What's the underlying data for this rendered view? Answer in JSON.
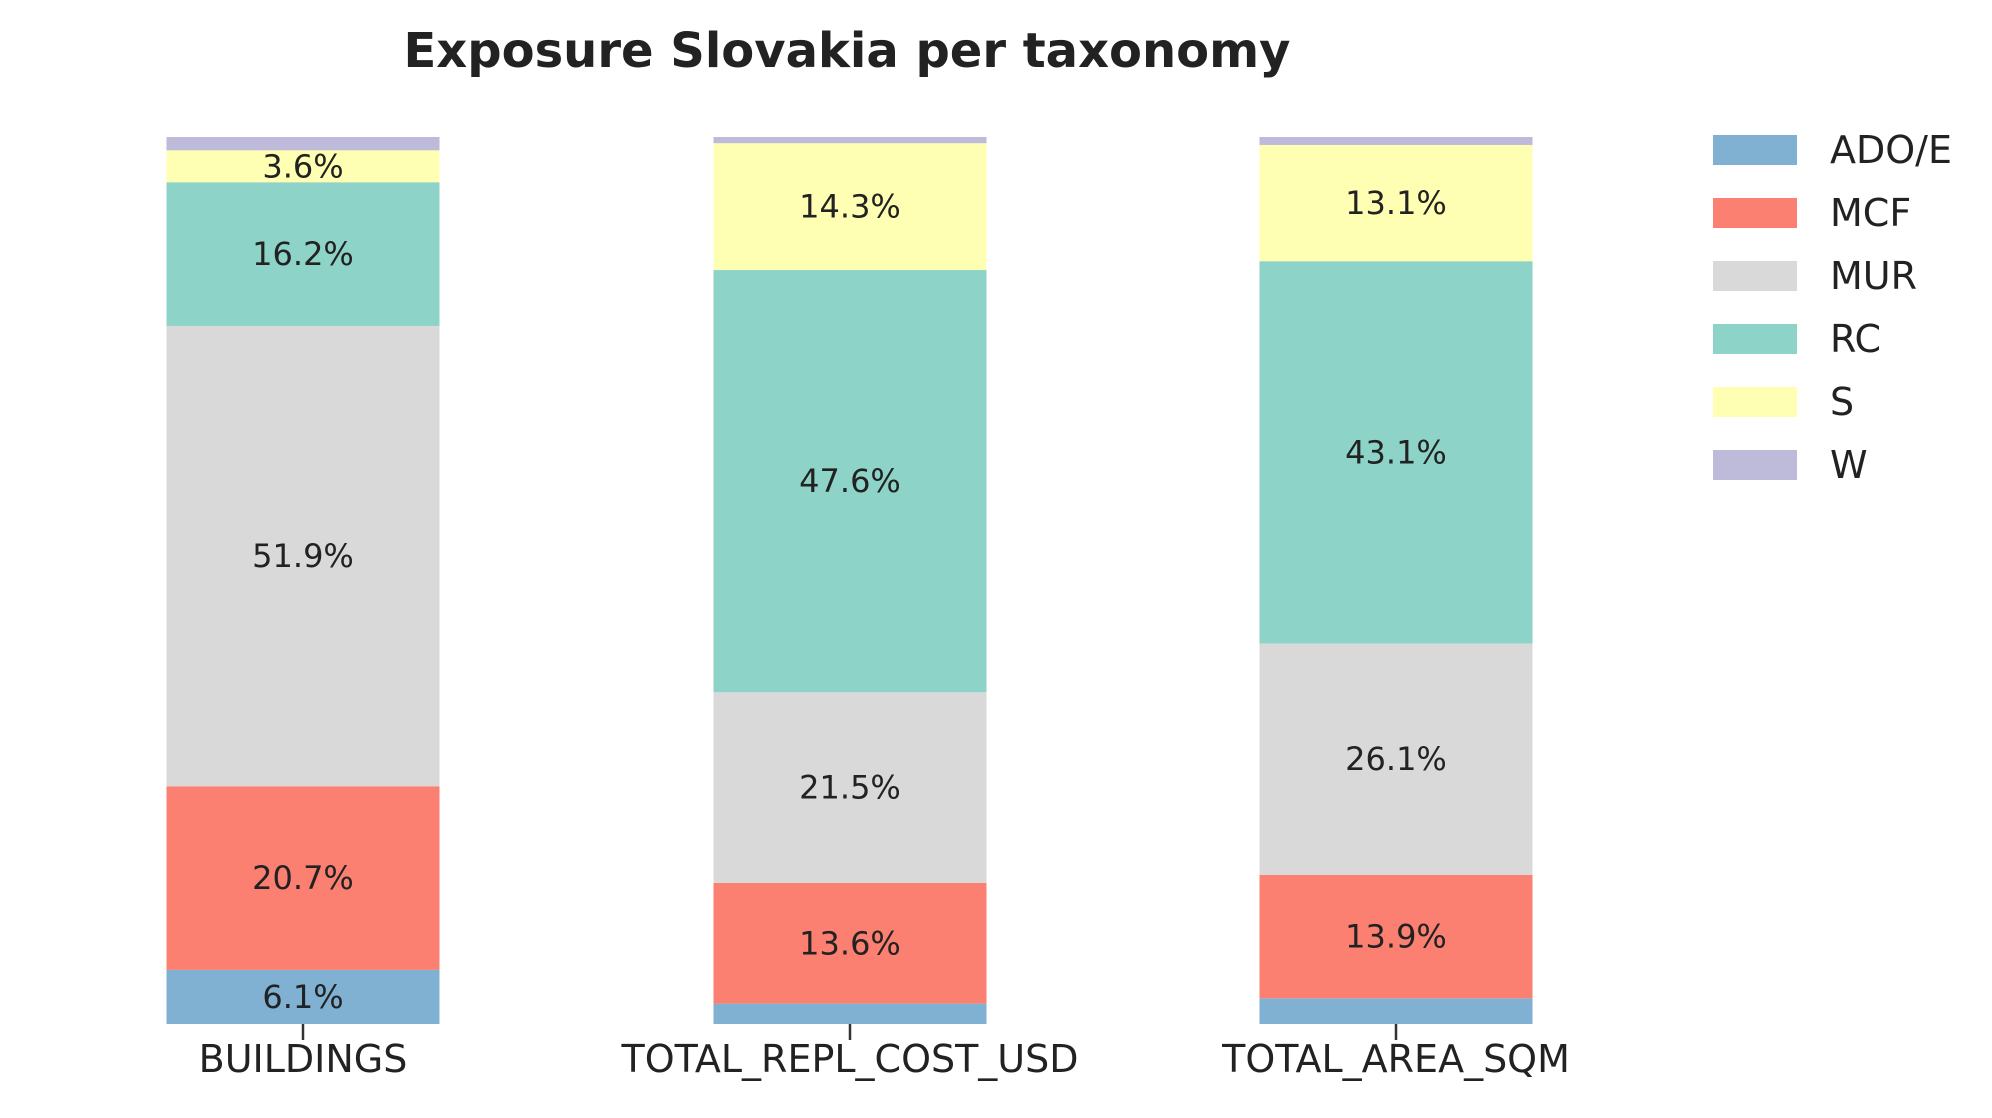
{
  "chart_data": {
    "type": "bar",
    "stacked": true,
    "title": "Exposure Slovakia per taxonomy",
    "xlabel": "",
    "ylabel": "",
    "ylim": [
      0,
      100
    ],
    "grid": false,
    "legend_position": "right",
    "categories": [
      "BUILDINGS",
      "TOTAL_REPL_COST_USD",
      "TOTAL_AREA_SQM"
    ],
    "series": [
      {
        "name": "ADO/E",
        "color": "#80b1d3",
        "values": [
          6.1,
          2.3,
          2.9
        ],
        "labels": [
          "6.1%",
          "",
          ""
        ]
      },
      {
        "name": "MCF",
        "color": "#fb8072",
        "values": [
          20.7,
          13.6,
          13.9
        ],
        "labels": [
          "20.7%",
          "13.6%",
          "13.9%"
        ]
      },
      {
        "name": "MUR",
        "color": "#d9d9d9",
        "values": [
          51.9,
          21.5,
          26.1
        ],
        "labels": [
          "51.9%",
          "21.5%",
          "26.1%"
        ]
      },
      {
        "name": "RC",
        "color": "#8dd3c7",
        "values": [
          16.2,
          47.6,
          43.1
        ],
        "labels": [
          "16.2%",
          "47.6%",
          "43.1%"
        ]
      },
      {
        "name": "S",
        "color": "#ffffb3",
        "values": [
          3.6,
          14.3,
          13.1
        ],
        "labels": [
          "3.6%",
          "14.3%",
          "13.1%"
        ]
      },
      {
        "name": "W",
        "color": "#bebada",
        "values": [
          1.5,
          0.7,
          0.9
        ],
        "labels": [
          "",
          "",
          ""
        ]
      }
    ]
  }
}
